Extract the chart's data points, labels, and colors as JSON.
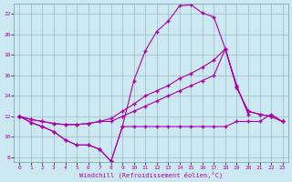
{
  "xlabel": "Windchill (Refroidissement éolien,°C)",
  "bg_color": "#cce8f0",
  "line_color": "#aa00aa",
  "grid_color": "#99bbcc",
  "xlim": [
    -0.5,
    23.5
  ],
  "ylim": [
    7.5,
    23.0
  ],
  "xticks": [
    0,
    1,
    2,
    3,
    4,
    5,
    6,
    7,
    8,
    9,
    10,
    11,
    12,
    13,
    14,
    15,
    16,
    17,
    18,
    19,
    20,
    21,
    22,
    23
  ],
  "yticks": [
    8,
    10,
    12,
    14,
    16,
    18,
    20,
    22
  ],
  "line1_x": [
    0,
    1,
    2,
    3,
    4,
    5,
    6,
    7,
    8,
    9,
    10,
    11,
    12,
    13,
    14,
    15,
    16,
    17,
    18,
    19,
    20
  ],
  "line1_y": [
    12.0,
    11.4,
    11.0,
    10.5,
    9.7,
    9.2,
    9.2,
    8.8,
    7.6,
    11.0,
    15.5,
    18.4,
    20.3,
    21.3,
    22.8,
    22.9,
    22.1,
    21.7,
    18.6,
    15.0,
    12.2
  ],
  "line2_x": [
    0,
    1,
    2,
    3,
    4,
    5,
    6,
    7,
    8,
    9,
    10,
    11,
    12,
    13,
    14,
    15,
    16,
    17,
    18,
    19,
    20,
    21,
    22,
    23
  ],
  "line2_y": [
    12.0,
    11.4,
    11.0,
    10.5,
    9.7,
    9.2,
    9.2,
    8.8,
    7.6,
    11.0,
    11.0,
    11.0,
    11.0,
    11.0,
    11.0,
    11.0,
    11.0,
    11.0,
    11.0,
    11.5,
    11.5,
    11.5,
    12.2,
    11.5
  ],
  "line3_x": [
    0,
    1,
    2,
    3,
    4,
    5,
    6,
    7,
    8,
    9,
    10,
    11,
    12,
    13,
    14,
    15,
    16,
    17,
    18,
    19,
    20,
    21,
    22,
    23
  ],
  "line3_y": [
    12.0,
    11.7,
    11.5,
    11.3,
    11.2,
    11.2,
    11.3,
    11.5,
    11.5,
    12.0,
    12.5,
    13.0,
    13.5,
    14.0,
    14.5,
    15.0,
    15.5,
    16.0,
    18.6,
    14.8,
    12.5,
    12.2,
    12.0,
    11.5
  ],
  "line4_x": [
    0,
    1,
    2,
    3,
    4,
    5,
    6,
    7,
    8,
    9,
    10,
    11,
    12,
    13,
    14,
    15,
    16,
    17,
    18,
    19,
    20,
    21,
    22,
    23
  ],
  "line4_y": [
    12.0,
    11.7,
    11.5,
    11.3,
    11.2,
    11.2,
    11.3,
    11.5,
    11.8,
    12.5,
    13.2,
    14.0,
    14.5,
    15.0,
    15.7,
    16.2,
    16.8,
    17.5,
    18.6,
    14.8,
    12.5,
    12.2,
    12.0,
    11.5
  ]
}
